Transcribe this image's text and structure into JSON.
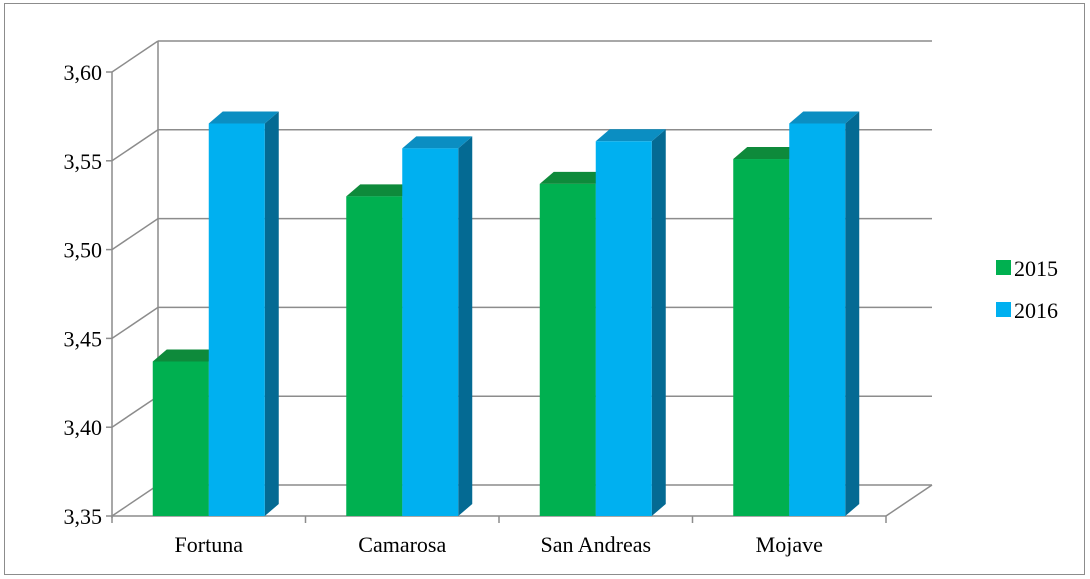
{
  "chart_data": {
    "type": "bar",
    "categories": [
      "Fortuna",
      "Camarosa",
      "San Andreas",
      "Mojave"
    ],
    "series": [
      {
        "name": "2015",
        "values": [
          3.437,
          3.53,
          3.537,
          3.551
        ],
        "color": "#00b050",
        "top_color": "#0e8a3b",
        "side_color": "#087a33"
      },
      {
        "name": "2016",
        "values": [
          3.571,
          3.557,
          3.561,
          3.571
        ],
        "color": "#00b0f0",
        "top_color": "#0b8ec2",
        "side_color": "#046a93"
      }
    ],
    "ylim": [
      3.35,
      3.6
    ],
    "yticks": [
      "3,35",
      "3,40",
      "3,45",
      "3,50",
      "3,55",
      "3,60"
    ],
    "ytick_values": [
      3.35,
      3.4,
      3.45,
      3.5,
      3.55,
      3.6
    ],
    "title": "",
    "xlabel": "",
    "ylabel": "",
    "legend_position": "right",
    "grid": true,
    "style": "3d-clustered-column"
  }
}
